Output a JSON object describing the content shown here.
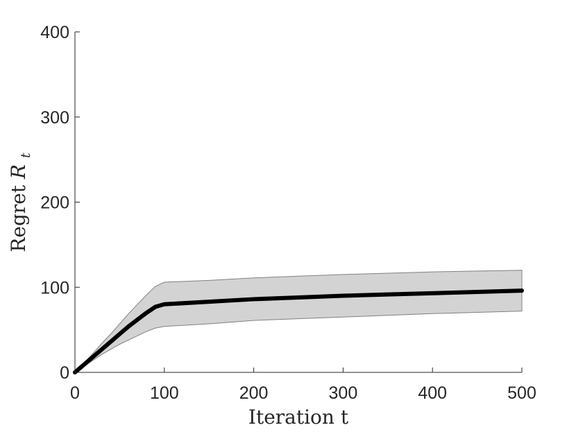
{
  "chart_data": {
    "type": "line",
    "xlabel": "Iteration t",
    "ylabel_text": "Regret ",
    "ylabel_symbol": "R",
    "ylabel_subscript": "t",
    "xlim": [
      0,
      500
    ],
    "ylim": [
      0,
      400
    ],
    "xticks": [
      0,
      100,
      200,
      300,
      400,
      500
    ],
    "yticks": [
      0,
      100,
      200,
      300,
      400
    ],
    "grid": false,
    "legend": "none",
    "series": [
      {
        "x": [
          0,
          10,
          20,
          30,
          40,
          50,
          60,
          70,
          80,
          90,
          100,
          150,
          200,
          250,
          300,
          350,
          400,
          450,
          500
        ],
        "values": [
          0,
          9,
          18,
          27,
          36,
          45,
          54,
          62,
          70,
          77,
          80,
          83,
          86,
          88,
          90,
          91.5,
          93,
          94.5,
          96
        ],
        "lower": [
          0,
          7,
          14,
          21,
          27,
          33,
          38,
          43,
          48,
          52,
          54,
          57,
          61,
          63,
          65,
          67,
          69,
          70.5,
          72
        ],
        "upper": [
          0,
          11,
          22,
          34,
          45,
          57,
          69,
          80,
          91,
          101,
          106,
          108,
          111,
          113,
          115,
          116.5,
          118,
          119,
          120
        ],
        "color": "#000000",
        "band_color": "#d3d3d3",
        "band_edge_color": "#808080"
      }
    ]
  }
}
